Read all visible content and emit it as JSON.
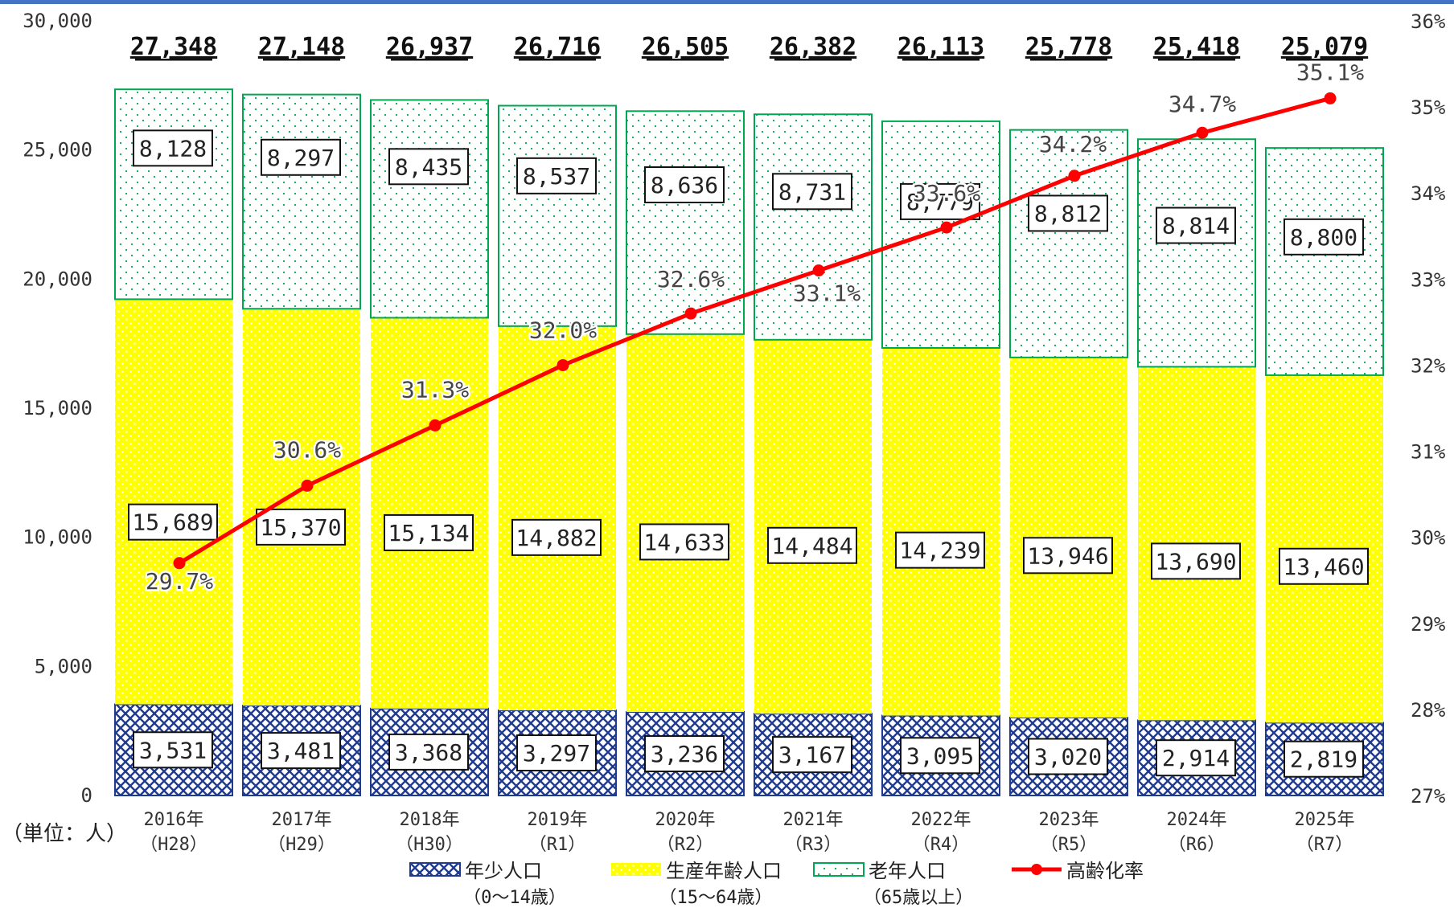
{
  "chart_data": {
    "type": "bar",
    "stacked": true,
    "categories": [
      "2016年",
      "2017年",
      "2018年",
      "2019年",
      "2020年",
      "2021年",
      "2022年",
      "2023年",
      "2024年",
      "2025年"
    ],
    "category_sublabels": [
      "（H28）",
      "（H29）",
      "（H30）",
      "（R1）",
      "（R2）",
      "（R3）",
      "（R4）",
      "（R5）",
      "（R6）",
      "（R7）"
    ],
    "series": [
      {
        "name": "年少人口",
        "sublabel": "（0～14歳）",
        "type": "bar",
        "color": "#1f3a8f",
        "values": [
          3531,
          3481,
          3368,
          3297,
          3236,
          3167,
          3095,
          3020,
          2914,
          2819
        ],
        "labels": [
          "3,531",
          "3,481",
          "3,368",
          "3,297",
          "3,236",
          "3,167",
          "3,095",
          "3,020",
          "2,914",
          "2,819"
        ]
      },
      {
        "name": "生産年齢人口",
        "sublabel": "（15～64歳）",
        "type": "bar",
        "color": "#ffff00",
        "values": [
          15689,
          15370,
          15134,
          14882,
          14633,
          14484,
          14239,
          13946,
          13690,
          13460
        ],
        "labels": [
          "15,689",
          "15,370",
          "15,134",
          "14,882",
          "14,633",
          "14,484",
          "14,239",
          "13,946",
          "13,690",
          "13,460"
        ]
      },
      {
        "name": "老年人口",
        "sublabel": "（65歳以上）",
        "type": "bar",
        "color": "#00a650",
        "values": [
          8128,
          8297,
          8435,
          8537,
          8636,
          8731,
          8779,
          8812,
          8814,
          8800
        ],
        "labels": [
          "8,128",
          "8,297",
          "8,435",
          "8,537",
          "8,636",
          "8,731",
          "8,779",
          "8,812",
          "8,814",
          "8,800"
        ]
      },
      {
        "name": "高齢化率",
        "type": "line",
        "axis": "right",
        "color": "#ff0000",
        "values": [
          29.7,
          30.6,
          31.3,
          32.0,
          32.6,
          33.1,
          33.6,
          34.2,
          34.7,
          35.1
        ],
        "labels": [
          "29.7%",
          "30.6%",
          "31.3%",
          "32.0%",
          "32.6%",
          "33.1%",
          "33.6%",
          "34.2%",
          "34.7%",
          "35.1%"
        ]
      }
    ],
    "totals": [
      27348,
      27148,
      26937,
      26716,
      26505,
      26382,
      26113,
      25778,
      25418,
      25079
    ],
    "total_labels": [
      "27,348",
      "27,148",
      "26,937",
      "26,716",
      "26,505",
      "26,382",
      "26,113",
      "25,778",
      "25,418",
      "25,079"
    ],
    "ylim": [
      0,
      30000
    ],
    "yticks": [
      0,
      5000,
      10000,
      15000,
      20000,
      25000,
      30000
    ],
    "ytick_labels": [
      "0",
      "5,000",
      "10,000",
      "15,000",
      "20,000",
      "25,000",
      "30,000"
    ],
    "y2lim": [
      27,
      36
    ],
    "y2ticks": [
      27,
      28,
      29,
      30,
      31,
      32,
      33,
      34,
      35,
      36
    ],
    "y2tick_labels": [
      "27%",
      "28%",
      "29%",
      "30%",
      "31%",
      "32%",
      "33%",
      "34%",
      "35%",
      "36%"
    ],
    "unit_label": "（単位：人）",
    "legend_position": "bottom",
    "grid": false,
    "accent_color": "#4472c4"
  }
}
